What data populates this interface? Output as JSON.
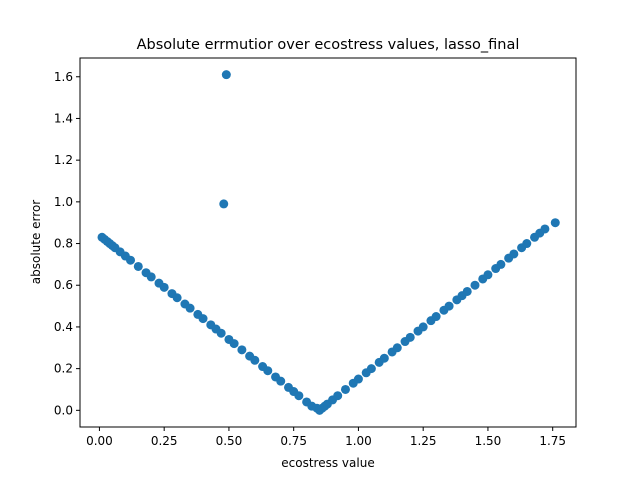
{
  "chart_data": {
    "type": "scatter",
    "title": "Absolute errmutior over ecostress values, lasso_final",
    "xlabel": "ecostress value",
    "ylabel": "absolute error",
    "xlim": [
      -0.075,
      1.84
    ],
    "ylim": [
      -0.08,
      1.69
    ],
    "xticks": [
      0.0,
      0.25,
      0.5,
      0.75,
      1.0,
      1.25,
      1.5,
      1.75
    ],
    "xtick_labels": [
      "0.00",
      "0.25",
      "0.50",
      "0.75",
      "1.00",
      "1.25",
      "1.50",
      "1.75"
    ],
    "yticks": [
      0.0,
      0.2,
      0.4,
      0.6,
      0.8,
      1.0,
      1.2,
      1.4,
      1.6
    ],
    "ytick_labels": [
      "0.0",
      "0.2",
      "0.4",
      "0.6",
      "0.8",
      "1.0",
      "1.2",
      "1.4",
      "1.6"
    ],
    "grid": false,
    "marker_color": "#1f77b4",
    "series": [
      {
        "x": [
          0.01,
          0.02,
          0.03,
          0.04,
          0.05,
          0.06,
          0.08,
          0.1,
          0.12,
          0.15,
          0.18,
          0.2,
          0.23,
          0.25,
          0.28,
          0.3,
          0.33,
          0.35,
          0.38,
          0.4,
          0.43,
          0.45,
          0.47,
          0.5,
          0.52,
          0.55,
          0.58,
          0.6,
          0.63,
          0.65,
          0.68,
          0.7,
          0.73,
          0.75,
          0.77,
          0.8,
          0.82,
          0.84,
          0.85,
          0.86,
          0.87,
          0.88,
          0.9,
          0.92,
          0.95,
          0.98,
          1.0,
          1.03,
          1.05,
          1.08,
          1.1,
          1.13,
          1.15,
          1.18,
          1.2,
          1.23,
          1.25,
          1.28,
          1.3,
          1.33,
          1.35,
          1.38,
          1.4,
          1.42,
          1.45,
          1.48,
          1.5,
          1.53,
          1.55,
          1.58,
          1.6,
          1.63,
          1.65,
          1.68,
          1.7,
          1.72,
          1.76,
          0.48,
          0.49
        ],
        "y": [
          0.83,
          0.82,
          0.81,
          0.8,
          0.79,
          0.78,
          0.76,
          0.74,
          0.72,
          0.69,
          0.66,
          0.64,
          0.61,
          0.59,
          0.56,
          0.54,
          0.51,
          0.49,
          0.46,
          0.44,
          0.41,
          0.39,
          0.37,
          0.34,
          0.32,
          0.29,
          0.26,
          0.24,
          0.21,
          0.19,
          0.16,
          0.14,
          0.11,
          0.09,
          0.07,
          0.04,
          0.02,
          0.01,
          0.0,
          0.01,
          0.02,
          0.03,
          0.05,
          0.07,
          0.1,
          0.13,
          0.15,
          0.18,
          0.2,
          0.23,
          0.25,
          0.28,
          0.3,
          0.33,
          0.35,
          0.38,
          0.4,
          0.43,
          0.45,
          0.48,
          0.5,
          0.53,
          0.55,
          0.57,
          0.6,
          0.63,
          0.65,
          0.68,
          0.7,
          0.73,
          0.75,
          0.78,
          0.8,
          0.83,
          0.85,
          0.87,
          0.9,
          0.99,
          1.61
        ]
      }
    ]
  }
}
